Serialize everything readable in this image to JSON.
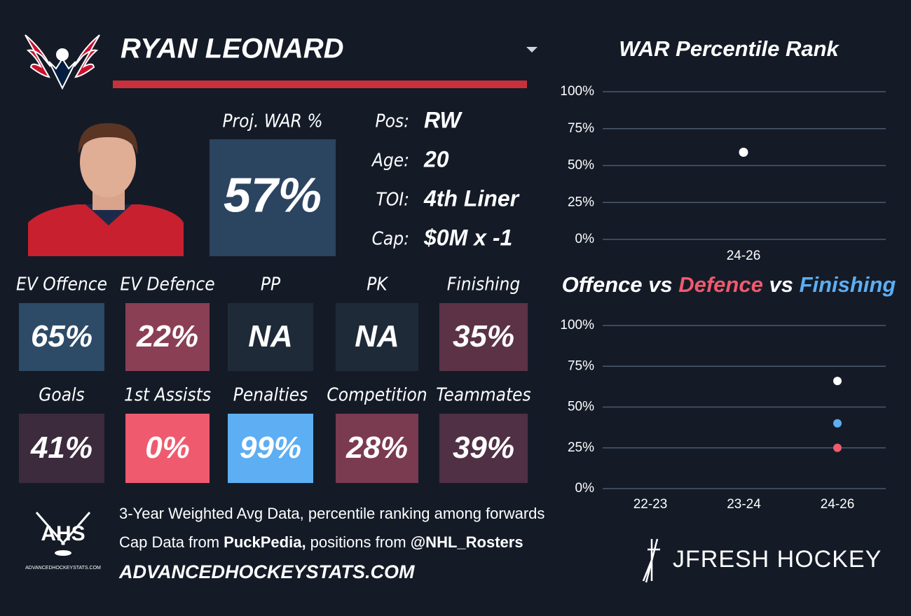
{
  "header": {
    "name": "RYAN LEONARD"
  },
  "projection": {
    "label": "Proj. WAR %",
    "value": "57%",
    "color": "#2b4460"
  },
  "info": [
    {
      "label": "Pos:",
      "value": "RW"
    },
    {
      "label": "Age:",
      "value": "20"
    },
    {
      "label": "TOI:",
      "value": "4th Liner"
    },
    {
      "label": "Cap:",
      "value": "$0M x -1"
    }
  ],
  "tiles": [
    {
      "label": "EV Offence",
      "value": "65%",
      "color": "#2d4a66"
    },
    {
      "label": "EV Defence",
      "value": "22%",
      "color": "#8a3f55"
    },
    {
      "label": "PP",
      "value": "NA",
      "color": "#1f2a38"
    },
    {
      "label": "PK",
      "value": "NA",
      "color": "#1f2a38"
    },
    {
      "label": "Finishing",
      "value": "35%",
      "color": "#5c3246"
    },
    {
      "label": "Goals",
      "value": "41%",
      "color": "#3b2b3c"
    },
    {
      "label": "1st Assists",
      "value": "0%",
      "color": "#ef5a6e"
    },
    {
      "label": "Penalties",
      "value": "99%",
      "color": "#5daef2"
    },
    {
      "label": "Competition",
      "value": "28%",
      "color": "#7a3a50"
    },
    {
      "label": "Teammates",
      "value": "39%",
      "color": "#4f3044"
    }
  ],
  "footer": {
    "line1": "3-Year Weighted Avg Data, percentile ranking among forwards",
    "line2_a": "Cap Data from ",
    "line2_b": "PuckPedia,",
    "line2_c": " positions from ",
    "line2_d": "@NHL_Rosters",
    "site": "ADVANCEDHOCKEYSTATS.COM",
    "logo": "AHS",
    "logo_small": "ADVANCEDHOCKEYSTATS.COM",
    "brand": "JFRESH HOCKEY"
  },
  "chart_data": [
    {
      "type": "scatter",
      "title": "WAR Percentile Rank",
      "categories": [
        "24-26"
      ],
      "series": [
        {
          "name": null,
          "color": "#ffffff",
          "values": [
            59
          ]
        }
      ],
      "ylim": [
        0,
        100
      ],
      "yticks": [
        {
          "value": 0,
          "label": "0%"
        },
        {
          "value": 25,
          "label": "25%"
        },
        {
          "value": 50,
          "label": "50%"
        },
        {
          "value": 75,
          "label": "75%"
        },
        {
          "value": 100,
          "label": "100%"
        }
      ],
      "grid": true
    },
    {
      "type": "scatter",
      "title_joiner": "vs",
      "categories": [
        "22-23",
        "23-24",
        "24-26"
      ],
      "series": [
        {
          "name": "Offence",
          "color": "#ffffff",
          "values": [
            null,
            null,
            66
          ]
        },
        {
          "name": "Defence",
          "color": "#ef5a6e",
          "values": [
            null,
            null,
            25
          ]
        },
        {
          "name": "Finishing",
          "color": "#5daef2",
          "values": [
            null,
            null,
            40
          ]
        }
      ],
      "ylim": [
        0,
        100
      ],
      "yticks": [
        {
          "value": 0,
          "label": "0%"
        },
        {
          "value": 25,
          "label": "25%"
        },
        {
          "value": 50,
          "label": "50%"
        },
        {
          "value": 75,
          "label": "75%"
        },
        {
          "value": 100,
          "label": "100%"
        }
      ],
      "grid": true
    }
  ]
}
